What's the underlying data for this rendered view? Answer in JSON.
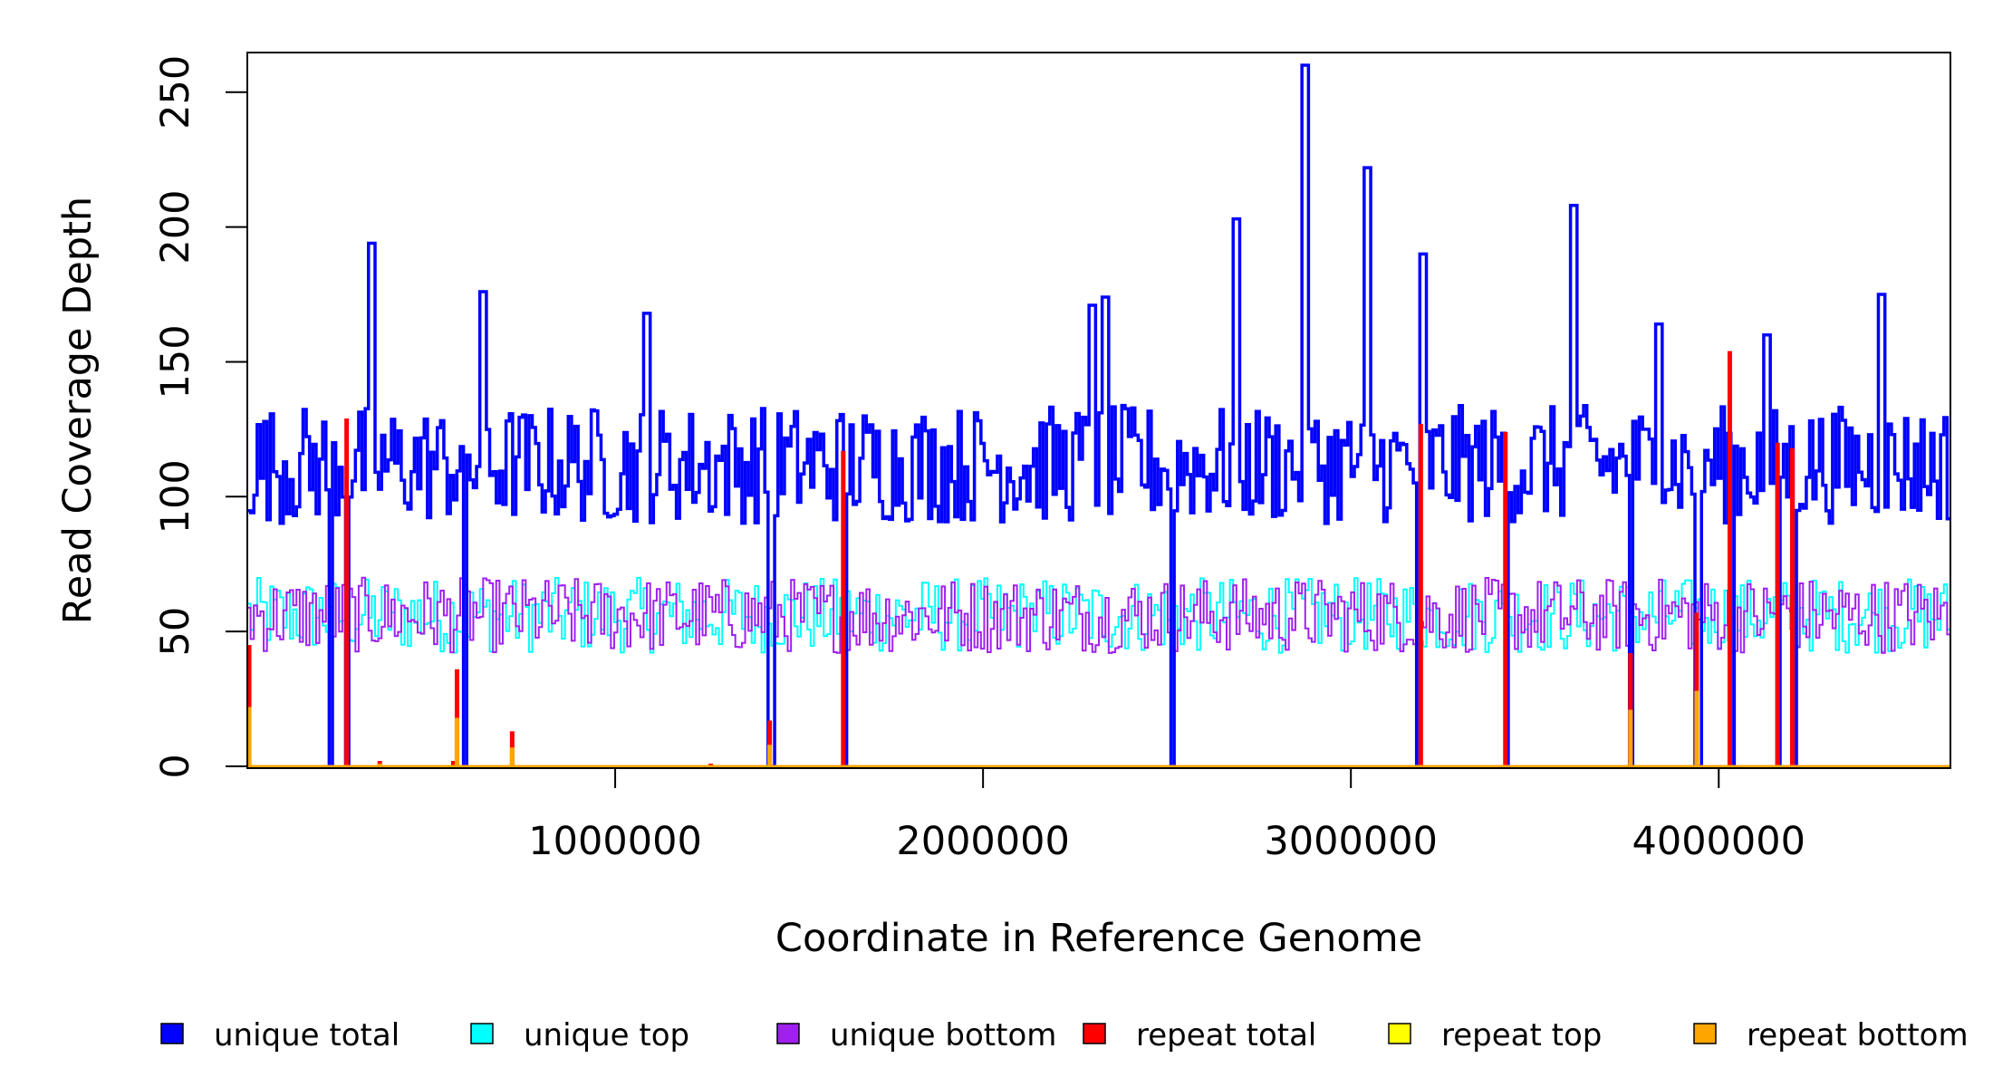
{
  "chart_data": {
    "type": "line",
    "xlabel": "Coordinate in Reference Genome",
    "ylabel": "Read Coverage Depth",
    "xlim": [
      0,
      4629812
    ],
    "ylim": [
      0,
      260
    ],
    "x_ticks": [
      1000000,
      2000000,
      3000000,
      4000000
    ],
    "x_tick_labels": [
      "1000000",
      "2000000",
      "3000000",
      "4000000"
    ],
    "y_ticks": [
      0,
      50,
      100,
      150,
      200,
      250
    ],
    "y_tick_labels": [
      "0",
      "50",
      "100",
      "150",
      "200",
      "250"
    ],
    "legend_position": "bottom",
    "series": [
      {
        "name": "unique total",
        "color": "#0000ff",
        "baseline": 112,
        "spread": 22,
        "spikes": [
          [
            330000,
            194
          ],
          [
            640000,
            176
          ],
          [
            1080000,
            168
          ],
          [
            2290000,
            171
          ],
          [
            2330000,
            174
          ],
          [
            2680000,
            203
          ],
          [
            2870000,
            260
          ],
          [
            3040000,
            222
          ],
          [
            3190000,
            190
          ],
          [
            3600000,
            208
          ],
          [
            4440000,
            175
          ],
          [
            4130000,
            160
          ],
          [
            3830000,
            164
          ]
        ],
        "dropouts": [
          220000,
          270000,
          590000,
          1420000,
          1620000,
          2510000,
          3180000,
          3420000,
          3760000,
          3940000,
          4030000,
          4160000,
          4200000
        ]
      },
      {
        "name": "unique top",
        "color": "#00ffff",
        "baseline": 56,
        "spread": 14,
        "spikes": [],
        "dropouts": []
      },
      {
        "name": "unique bottom",
        "color": "#a020f0",
        "baseline": 56,
        "spread": 14,
        "spikes": [],
        "dropouts": []
      },
      {
        "name": "repeat total",
        "color": "#ff0000",
        "points": [
          [
            5000,
            45
          ],
          [
            270000,
            129
          ],
          [
            360000,
            2
          ],
          [
            560000,
            2
          ],
          [
            570000,
            36
          ],
          [
            720000,
            13
          ],
          [
            1260000,
            1
          ],
          [
            1420000,
            17
          ],
          [
            1620000,
            117
          ],
          [
            3190000,
            127
          ],
          [
            3420000,
            124
          ],
          [
            3760000,
            42
          ],
          [
            3940000,
            57
          ],
          [
            4030000,
            154
          ],
          [
            4160000,
            120
          ],
          [
            4200000,
            118
          ]
        ]
      },
      {
        "name": "repeat top",
        "color": "#ffff00",
        "points": []
      },
      {
        "name": "repeat bottom",
        "color": "#ffa500",
        "points": [
          [
            5000,
            22
          ],
          [
            360000,
            1
          ],
          [
            570000,
            18
          ],
          [
            720000,
            7
          ],
          [
            1420000,
            8
          ],
          [
            3760000,
            21
          ],
          [
            3940000,
            28
          ]
        ]
      }
    ]
  },
  "legend": {
    "items": [
      {
        "label": "unique total",
        "color": "#0000ff"
      },
      {
        "label": "unique top",
        "color": "#00ffff"
      },
      {
        "label": "unique bottom",
        "color": "#a020f0"
      },
      {
        "label": "repeat total",
        "color": "#ff0000"
      },
      {
        "label": "repeat top",
        "color": "#ffff00"
      },
      {
        "label": "repeat bottom",
        "color": "#ffa500"
      }
    ]
  }
}
